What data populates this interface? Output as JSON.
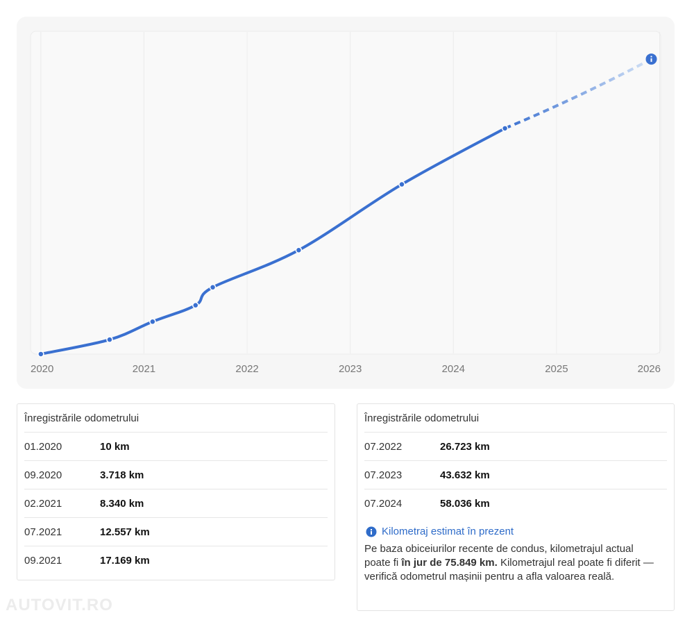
{
  "chart_data": {
    "type": "line",
    "x": [
      "01.2020",
      "09.2020",
      "02.2021",
      "07.2021",
      "09.2021",
      "07.2022",
      "07.2023",
      "07.2024"
    ],
    "values": [
      10,
      3718,
      8340,
      12557,
      17169,
      26723,
      43632,
      58036
    ],
    "value_labels": [
      "10 km",
      "3.718 km",
      "8.340 km",
      "12.557 km",
      "17.169 km",
      "26.723 km",
      "43.632 km",
      "58.036 km"
    ],
    "xlim": [
      2019.9,
      2026.01
    ],
    "xticks": [
      2020,
      2021,
      2022,
      2023,
      2024,
      2025,
      2026
    ],
    "ylim": [
      0,
      83000
    ],
    "color": "#3a70d0",
    "grid": true,
    "estimate": {
      "value": 75849,
      "label": "75.849 km"
    }
  },
  "panels": [
    {
      "title": "Înregistrările odometrului"
    },
    {
      "title": "Înregistrările odometrului"
    }
  ],
  "note": {
    "title": "Kilometraj estimat în prezent",
    "before": "Pe baza obiceiurilor recente de condus, kilometrajul actual poate fi ",
    "bold_prefix": "în jur de ",
    "bold_suffix": ".",
    "after": " Kilometrajul real poate fi diferit — verifică odometrul mașinii pentru a afla valoarea reală."
  },
  "watermark": "AUTOVIT.RO"
}
